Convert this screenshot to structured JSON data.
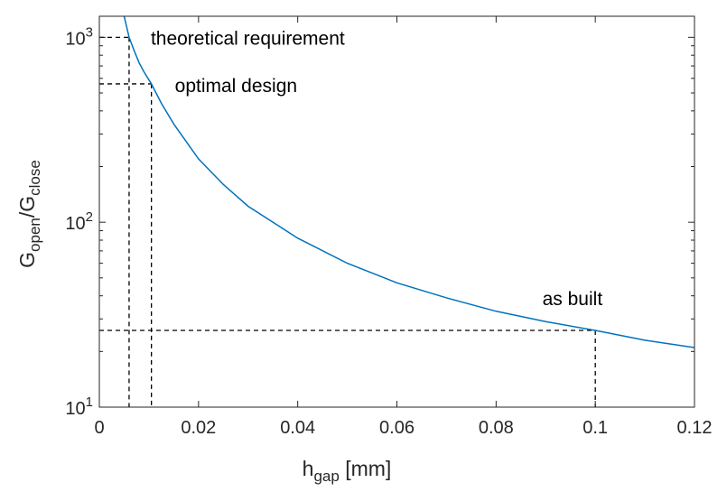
{
  "chart_data": {
    "type": "line",
    "title": "",
    "xlabel": {
      "main": "h",
      "sub": "gap",
      "suffix": " [mm]"
    },
    "ylabel": {
      "main1": "G",
      "sub1": "open",
      "mid": "/G",
      "sub2": "close"
    },
    "xlim": [
      0,
      0.12
    ],
    "ylim": [
      10,
      1300
    ],
    "yscale": "log",
    "grid": false,
    "x_ticks": [
      0,
      0.02,
      0.04,
      0.06,
      0.08,
      0.1,
      0.12
    ],
    "x_tick_labels": [
      "0",
      "0.02",
      "0.04",
      "0.06",
      "0.08",
      "0.1",
      "0.12"
    ],
    "y_ticks": [
      10,
      100,
      1000
    ],
    "y_tick_labels": [
      {
        "base": "10",
        "exp": "1"
      },
      {
        "base": "10",
        "exp": "2"
      },
      {
        "base": "10",
        "exp": "3"
      }
    ],
    "series": [
      {
        "color": "#0072BD",
        "x": [
          0.005,
          0.006,
          0.007,
          0.008,
          0.009,
          0.0105,
          0.0125,
          0.015,
          0.02,
          0.025,
          0.03,
          0.04,
          0.05,
          0.06,
          0.07,
          0.08,
          0.09,
          0.1,
          0.11,
          0.12
        ],
        "y": [
          1300,
          1000,
          850,
          730,
          650,
          560,
          440,
          340,
          220,
          160,
          122,
          82,
          60,
          47,
          39,
          33,
          29,
          26,
          23,
          21
        ]
      }
    ],
    "reference_lines": [
      {
        "label": "theoretical requirement",
        "x": 0.006,
        "y": 1000
      },
      {
        "label": "optimal design",
        "x": 0.0105,
        "y": 560
      },
      {
        "label": "as built",
        "x": 0.1,
        "y": 26
      }
    ]
  }
}
